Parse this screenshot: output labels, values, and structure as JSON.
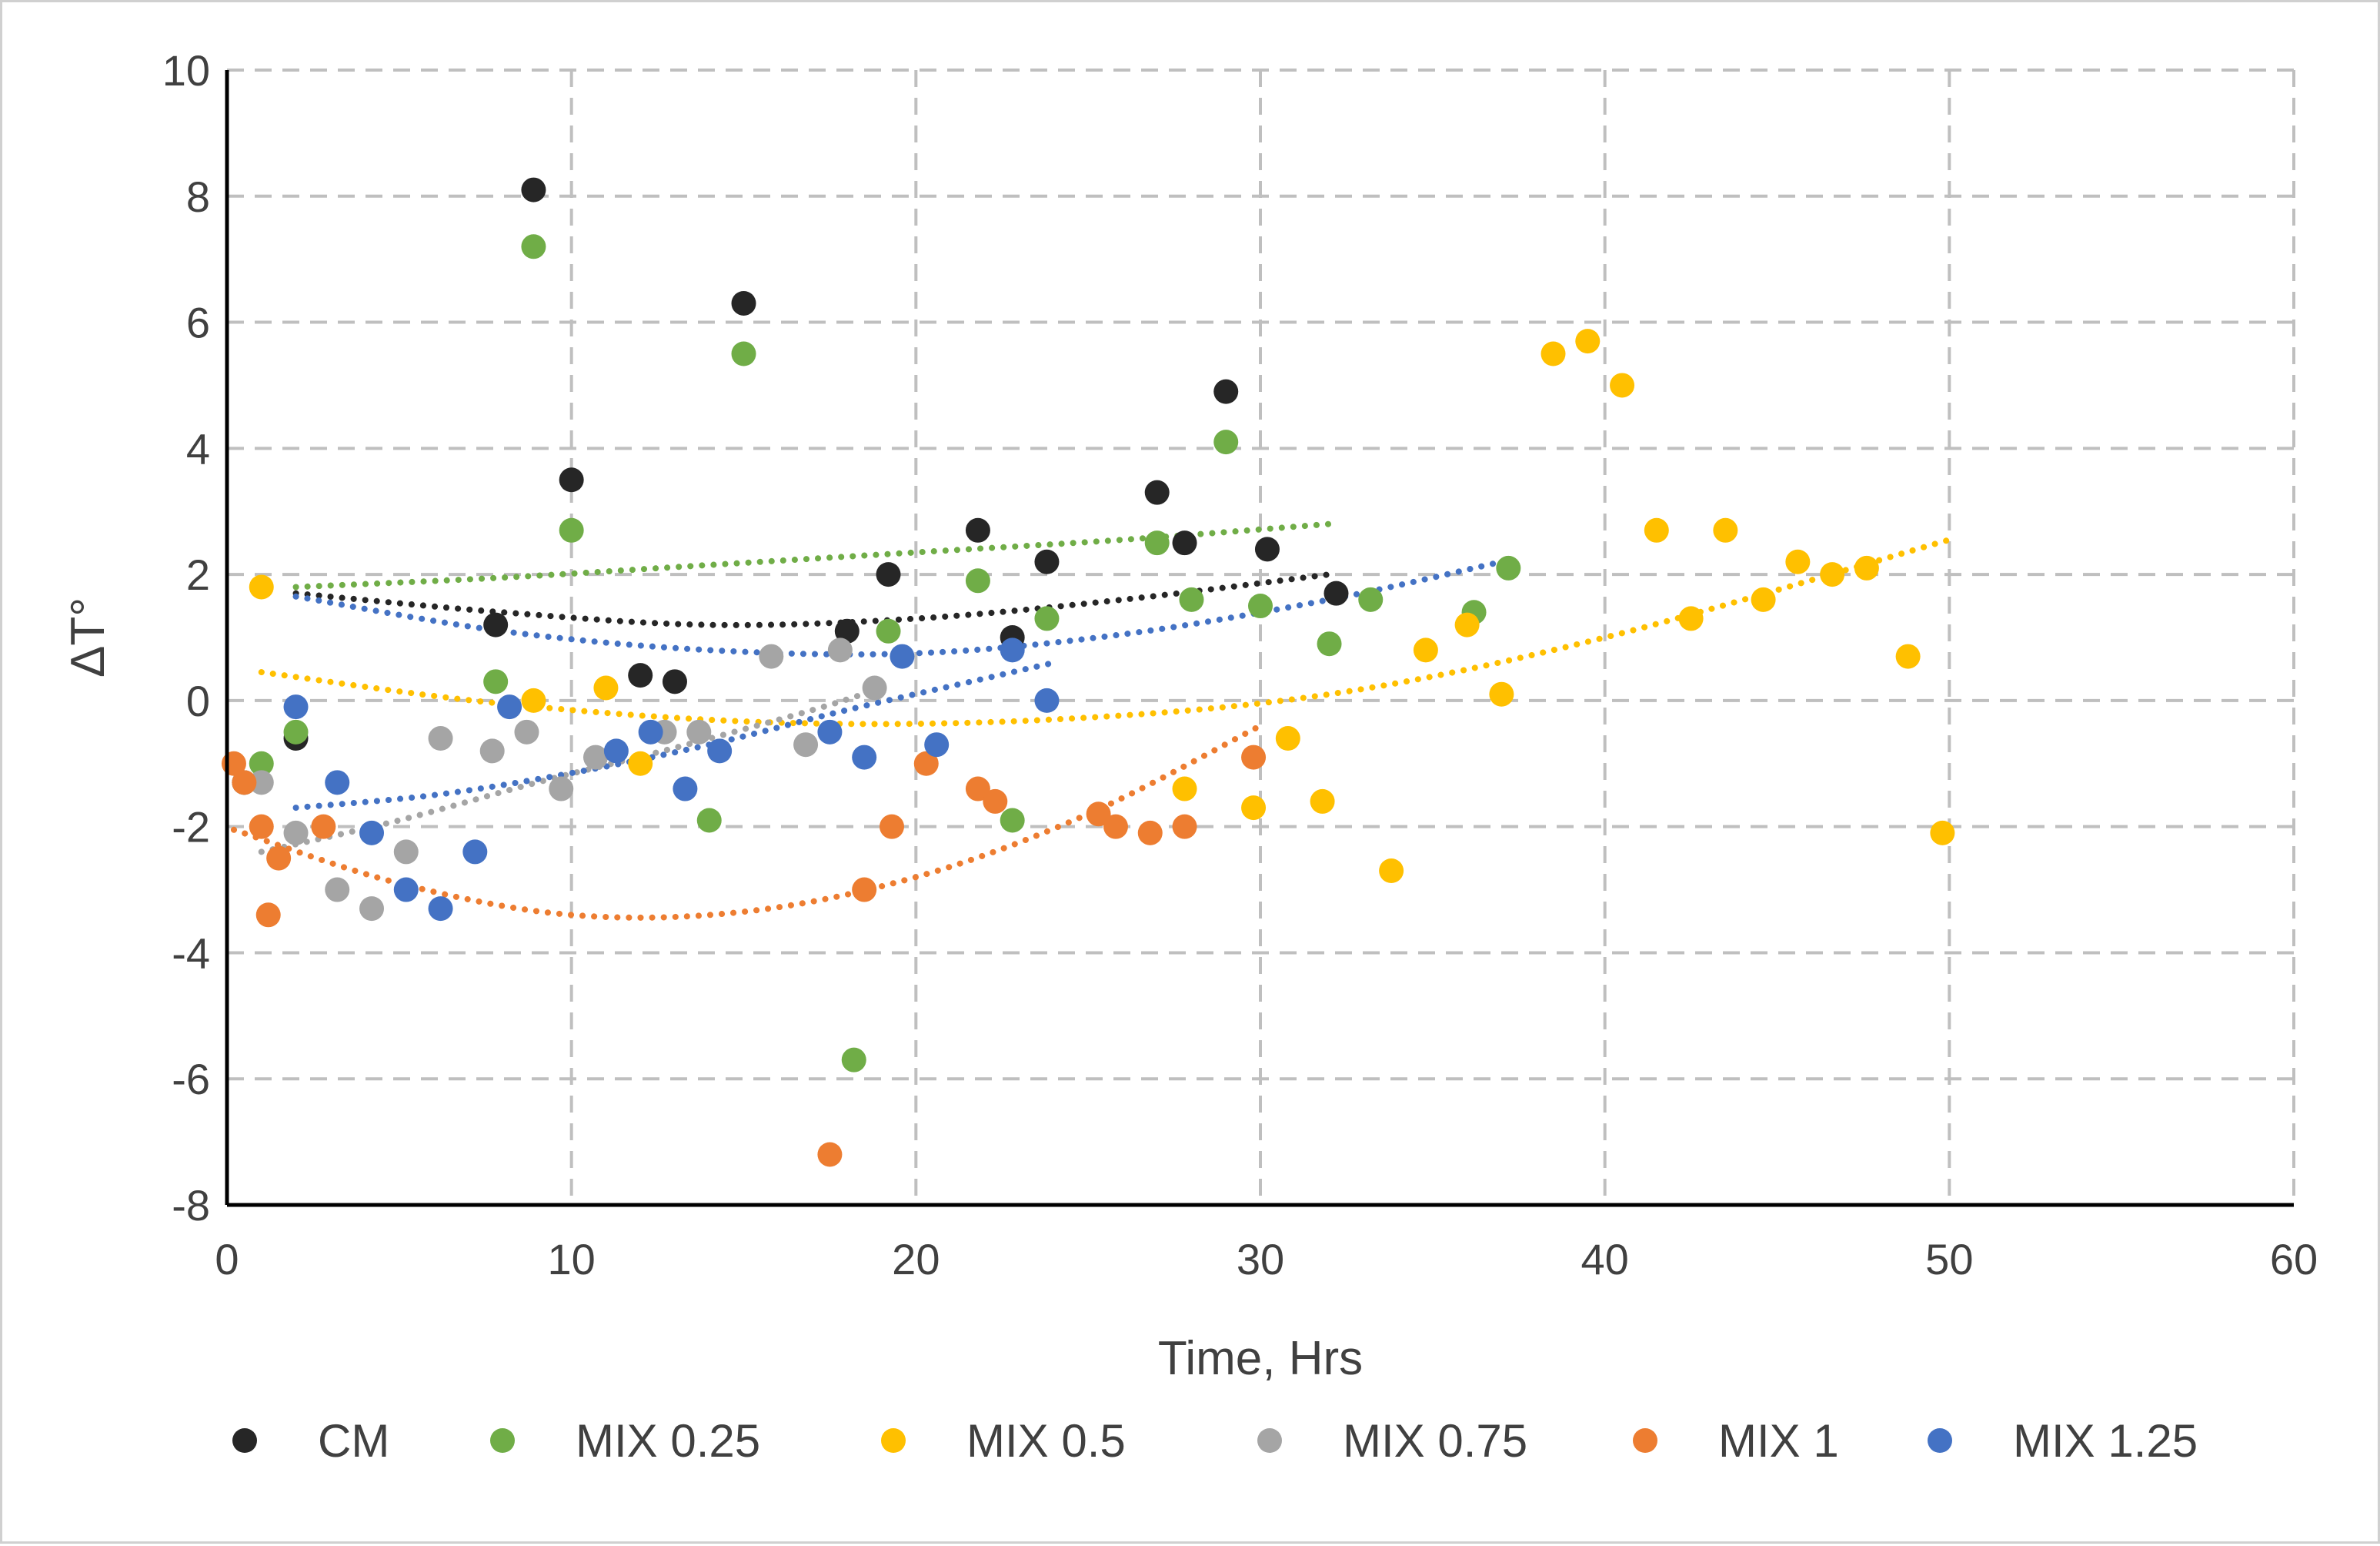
{
  "chart_data": {
    "type": "scatter",
    "title": "",
    "xlabel": "Time, Hrs",
    "ylabel": "ΔT°",
    "xlim": [
      0,
      60
    ],
    "ylim": [
      -8,
      10
    ],
    "x_ticks": [
      "0",
      "10",
      "20",
      "30",
      "40",
      "50",
      "60"
    ],
    "y_ticks": [
      "-8",
      "-6",
      "-4",
      "-2",
      "0",
      "2",
      "4",
      "6",
      "8",
      "10"
    ],
    "grid": true,
    "trendline": "polynomial, order 2, dotted",
    "legend_position": "bottom",
    "series": [
      {
        "name": "CM",
        "color": "#262626",
        "x": [
          0.5,
          2,
          7.8,
          8.9,
          10,
          12,
          13,
          15,
          18,
          19.2,
          21.8,
          22.8,
          23.8,
          27,
          27.8,
          29,
          30.2,
          32.2
        ],
        "y": [
          -1.3,
          -0.6,
          1.2,
          8.1,
          3.5,
          0.4,
          0.3,
          6.3,
          1.1,
          2.0,
          2.7,
          1.0,
          2.2,
          3.3,
          2.5,
          4.9,
          2.4,
          1.7
        ],
        "trend": [
          [
            2,
            1.7
          ],
          [
            8,
            1.4
          ],
          [
            14,
            1.2
          ],
          [
            20,
            1.3
          ],
          [
            26,
            1.6
          ],
          [
            32,
            2.0
          ]
        ]
      },
      {
        "name": "MIX 0.25",
        "color": "#70ad47",
        "x": [
          1,
          2,
          7.8,
          8.9,
          10,
          14,
          15,
          18.2,
          19.2,
          21.8,
          22.8,
          23.8,
          27,
          28,
          29,
          30,
          32,
          33.2,
          36.2,
          37.2
        ],
        "y": [
          -1.0,
          -0.5,
          0.3,
          7.2,
          2.7,
          -1.9,
          5.5,
          -5.7,
          1.1,
          1.9,
          -1.9,
          1.3,
          2.5,
          1.6,
          4.1,
          1.5,
          0.9,
          1.6,
          1.4,
          2.1
        ],
        "trend": [
          [
            2,
            1.8
          ],
          [
            8,
            1.95
          ],
          [
            14,
            2.15
          ],
          [
            20,
            2.35
          ],
          [
            26,
            2.55
          ],
          [
            32,
            2.8
          ]
        ]
      },
      {
        "name": "MIX 0.5",
        "color": "#ffc000",
        "x": [
          1,
          8.9,
          11,
          12,
          27.8,
          29.8,
          30.8,
          31.8,
          33.8,
          34.8,
          36,
          37,
          38.5,
          39.5,
          40.5,
          41.5,
          42.5,
          43.5,
          44.6,
          45.6,
          46.6,
          47.6,
          48.8,
          49.8
        ],
        "y": [
          1.8,
          0,
          0.2,
          -1.0,
          -1.4,
          -1.7,
          -0.6,
          -1.6,
          -2.7,
          0.8,
          1.2,
          0.1,
          5.5,
          5.7,
          5.0,
          2.7,
          1.3,
          2.7,
          1.6,
          2.2,
          2.0,
          2.1,
          0.7,
          -2.1
        ],
        "trend": [
          [
            1,
            0.45
          ],
          [
            8,
            -0.05
          ],
          [
            16,
            -0.35
          ],
          [
            24,
            -0.3
          ],
          [
            32,
            0.1
          ],
          [
            40,
            1.0
          ],
          [
            50,
            2.55
          ]
        ]
      },
      {
        "name": "MIX 0.75",
        "color": "#a5a5a5",
        "x": [
          1,
          2,
          3.2,
          4.2,
          5.2,
          6.2,
          7.7,
          8.7,
          9.7,
          10.7,
          12.7,
          13.7,
          15.8,
          16.8,
          17.8,
          18.8
        ],
        "y": [
          -1.3,
          -2.1,
          -3.0,
          -3.3,
          -2.4,
          -0.6,
          -0.8,
          -0.5,
          -1.4,
          -0.9,
          -0.5,
          -0.5,
          0.7,
          -0.7,
          0.8,
          0.2
        ],
        "trend": [
          [
            1,
            -2.4
          ],
          [
            5,
            -1.9
          ],
          [
            9,
            -1.3
          ],
          [
            13,
            -0.75
          ],
          [
            17,
            -0.15
          ],
          [
            19,
            0.2
          ]
        ]
      },
      {
        "name": "MIX 1",
        "color": "#ed7d31",
        "x": [
          0.2,
          0.5,
          1,
          1.2,
          1.5,
          2.8,
          17.5,
          18.5,
          19.3,
          20.3,
          21.8,
          22.3,
          25.3,
          25.8,
          26.8,
          27.8,
          29.8
        ],
        "y": [
          -1.0,
          -1.3,
          -2.0,
          -3.4,
          -2.5,
          -2.0,
          -7.2,
          -3.0,
          -2.0,
          -1.0,
          -1.4,
          -1.6,
          -1.8,
          -2.0,
          -2.1,
          -2.0,
          -0.9
        ],
        "trend": [
          [
            0.2,
            -2.05
          ],
          [
            5,
            -2.9
          ],
          [
            10,
            -3.4
          ],
          [
            15,
            -3.35
          ],
          [
            20,
            -2.8
          ],
          [
            25,
            -1.8
          ],
          [
            30,
            -0.4
          ]
        ]
      },
      {
        "name": "MIX 1.25",
        "color": "#4472c4",
        "x": [
          2,
          3.2,
          4.2,
          5.2,
          6.2,
          7.2,
          8.2,
          11.3,
          12.3,
          13.3,
          14.3,
          17.5,
          18.5,
          19.6,
          20.6,
          22.8,
          23.8
        ],
        "y": [
          -0.1,
          -1.3,
          -2.1,
          -3.0,
          -3.3,
          -2.4,
          -0.1,
          -0.8,
          -0.5,
          -1.4,
          -0.8,
          -0.5,
          -0.9,
          0.7,
          -0.7,
          0.8,
          0
        ],
        "trend": [
          [
            2,
            -1.7
          ],
          [
            6,
            -1.5
          ],
          [
            10,
            -1.15
          ],
          [
            14,
            -0.7
          ],
          [
            18,
            -0.15
          ],
          [
            22,
            0.35
          ],
          [
            24,
            0.6
          ]
        ],
        "trend2": [
          [
            2,
            1.65
          ],
          [
            8,
            1.1
          ],
          [
            14,
            0.8
          ],
          [
            20,
            0.75
          ],
          [
            26,
            1.05
          ],
          [
            32,
            1.6
          ],
          [
            37,
            2.2
          ]
        ]
      }
    ]
  }
}
